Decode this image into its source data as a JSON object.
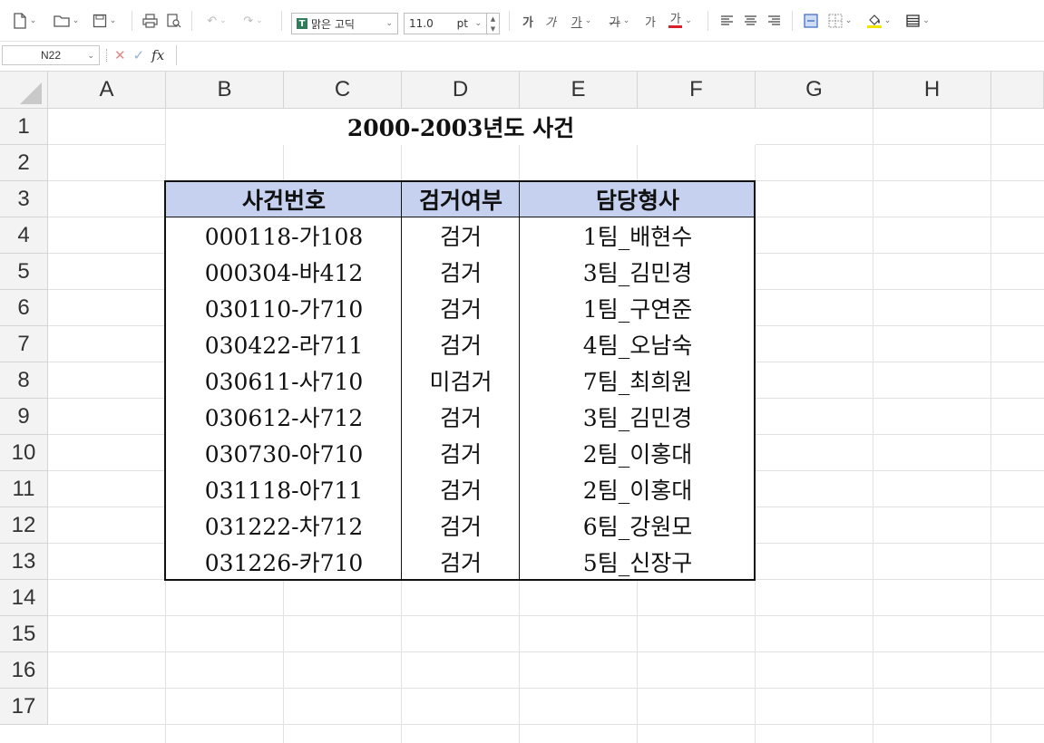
{
  "toolbar": {
    "font_name": "맑은 고딕",
    "font_size": "11.0",
    "font_unit": "pt",
    "bold_glyph": "가",
    "italic_glyph": "가",
    "underline_glyph": "가",
    "strike_glyph": "가",
    "shadow_glyph": "가",
    "color_glyph": "가",
    "font_icon_glyph": "T"
  },
  "formula_bar": {
    "name_box": "N22",
    "cancel_glyph": "✕",
    "confirm_glyph": "✓",
    "fx_glyph": "fx",
    "formula": ""
  },
  "columns": [
    "A",
    "B",
    "C",
    "D",
    "E",
    "F",
    "G",
    "H"
  ],
  "rows": [
    "1",
    "2",
    "3",
    "4",
    "5",
    "6",
    "7",
    "8",
    "9",
    "10",
    "11",
    "12",
    "13",
    "14",
    "15",
    "16",
    "17"
  ],
  "sheet": {
    "title": "2000-2003년도 사건",
    "headers": [
      "사건번호",
      "검거여부",
      "담당형사"
    ],
    "records": [
      [
        "000118-가108",
        "검거",
        "1팀_배현수"
      ],
      [
        "000304-바412",
        "검거",
        "3팀_김민경"
      ],
      [
        "030110-가710",
        "검거",
        "1팀_구연준"
      ],
      [
        "030422-라711",
        "검거",
        "4팀_오남숙"
      ],
      [
        "030611-사710",
        "미검거",
        "7팀_최희원"
      ],
      [
        "030612-사712",
        "검거",
        "3팀_김민경"
      ],
      [
        "030730-아710",
        "검거",
        "2팀_이홍대"
      ],
      [
        "031118-아711",
        "검거",
        "2팀_이홍대"
      ],
      [
        "031222-차712",
        "검거",
        "6팀_강원모"
      ],
      [
        "031226-카710",
        "검거",
        "5팀_신장구"
      ]
    ]
  },
  "colors": {
    "header_fill": "#c5d1ee",
    "font_color_bar": "#d9202a",
    "highlight_bar": "#f2e600"
  }
}
